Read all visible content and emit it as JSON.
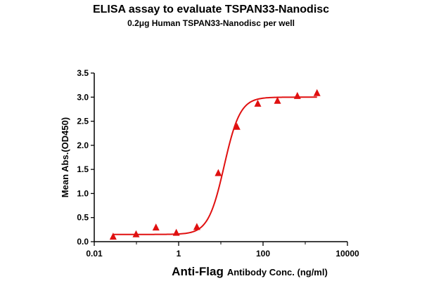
{
  "chart_data": {
    "type": "scatter",
    "title": "ELISA assay to evaluate TSPAN33-Nanodisc",
    "subtitle": "0.2μg Human TSPAN33-Nanodisc per well",
    "xlabel_main": "Anti-Flag",
    "xlabel_rest": "Antibody Conc. (ng/ml)",
    "ylabel": "Mean Abs.(OD450)",
    "xscale": "log",
    "xlim": [
      0.01,
      10000
    ],
    "ylim": [
      0,
      3.5
    ],
    "x_ticks": [
      0.01,
      1,
      100,
      10000
    ],
    "x_tick_labels": [
      "0.01",
      "1",
      "100",
      "10000"
    ],
    "y_ticks": [
      0.0,
      0.5,
      1.0,
      1.5,
      2.0,
      2.5,
      3.0,
      3.5
    ],
    "y_tick_labels": [
      "0.0",
      "0.5",
      "1.0",
      "1.5",
      "2.0",
      "2.5",
      "3.0",
      "3.5"
    ],
    "grid": false,
    "marker": "triangle",
    "color": "#e01010",
    "series": [
      {
        "x": [
          0.028,
          0.098,
          0.29,
          0.88,
          2.7,
          8.7,
          24,
          75,
          220,
          650,
          1900
        ],
        "y": [
          0.1,
          0.15,
          0.29,
          0.18,
          0.3,
          1.42,
          2.38,
          2.86,
          2.92,
          3.02,
          3.08
        ]
      }
    ],
    "fit": {
      "model": "4PL",
      "bottom": 0.15,
      "top": 3.0,
      "ec50": 12,
      "hill": 2.3
    }
  }
}
